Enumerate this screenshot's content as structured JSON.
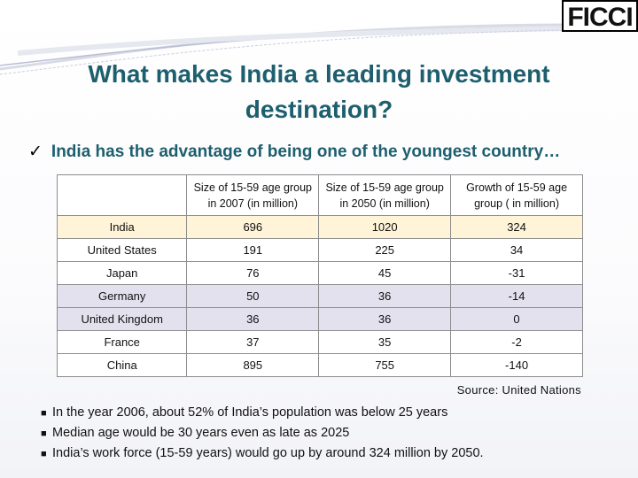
{
  "logo": {
    "text": "FICCI"
  },
  "title": "What makes India a leading investment destination?",
  "subtitle": {
    "check": "✓",
    "text": "India has the advantage of being one of the youngest country…"
  },
  "table": {
    "headers": [
      "",
      "Size of 15-59 age group in 2007 (in million)",
      "Size of 15-59 age group in 2050 (in million)",
      "Growth of 15-59 age group ( in million)"
    ],
    "rows": [
      [
        "India",
        "696",
        "1020",
        "324"
      ],
      [
        "United States",
        "191",
        "225",
        "34"
      ],
      [
        "Japan",
        "76",
        "45",
        "-31"
      ],
      [
        "Germany",
        "50",
        "36",
        "-14"
      ],
      [
        "United Kingdom",
        "36",
        "36",
        "0"
      ],
      [
        "France",
        "37",
        "35",
        "-2"
      ],
      [
        "China",
        "895",
        "755",
        "-140"
      ]
    ]
  },
  "source": "Source: United  Nations",
  "bullets": [
    "In the year 2006, about 52% of India’s population was below 25 years",
    "Median age would be 30 years even as late as 2025",
    "India’s work force (15-59 years) would go up by around 324 million by 2050."
  ],
  "colors": {
    "title": "#1d5f6e",
    "highlight_row": "#fff4d8",
    "alt_row": "#e4e1ee"
  }
}
